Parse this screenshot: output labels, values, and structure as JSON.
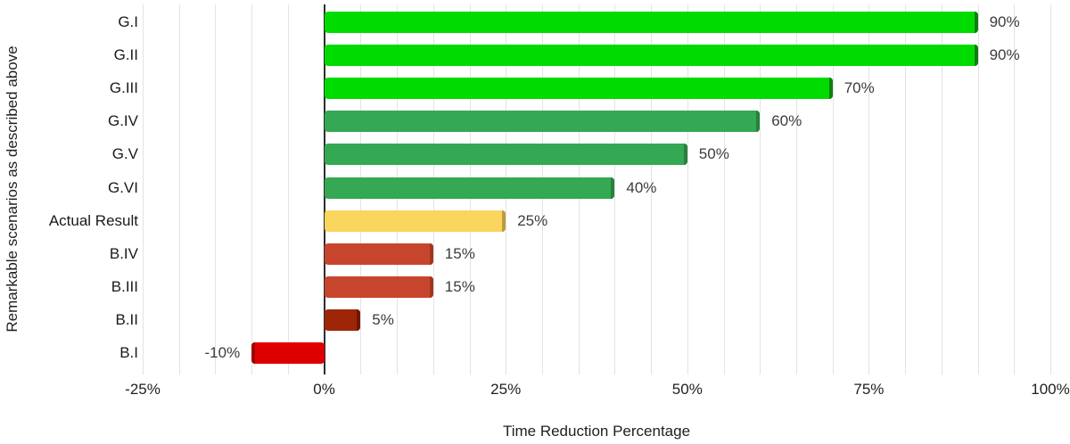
{
  "chart_data": {
    "type": "bar",
    "orientation": "horizontal",
    "title": "",
    "xlabel": "Time Reduction Percentage",
    "ylabel": "Remarkable scenarios as described above",
    "xlim": [
      -25,
      100
    ],
    "x_tick_labels": [
      "-25%",
      "0%",
      "25%",
      "50%",
      "75%",
      "100%"
    ],
    "x_tick_values": [
      -25,
      0,
      25,
      50,
      75,
      100
    ],
    "minor_grid_step_pct": 5,
    "grid": true,
    "legend": false,
    "categories": [
      "G.I",
      "G.II",
      "G.III",
      "G.IV",
      "G.V",
      "G.VI",
      "Actual Result",
      "B.IV",
      "B.III",
      "B.II",
      "B.I"
    ],
    "values": [
      90,
      90,
      70,
      60,
      50,
      40,
      25,
      15,
      15,
      5,
      -10
    ],
    "value_labels": [
      "90%",
      "90%",
      "70%",
      "60%",
      "50%",
      "40%",
      "25%",
      "15%",
      "15%",
      "5%",
      "-10%"
    ],
    "bar_fill_colors": [
      "#00dc00",
      "#00dc00",
      "#00dc00",
      "#34a853",
      "#34a853",
      "#34a853",
      "#fad65e",
      "#c7452c",
      "#c7452c",
      "#9e2508",
      "#de0000"
    ],
    "bar_cap_colors": [
      "#127d12",
      "#127d12",
      "#127d12",
      "#27813e",
      "#27813e",
      "#27813e",
      "#ba9b40",
      "#a1351f",
      "#a1351f",
      "#701604",
      "#9e0202"
    ],
    "colors": {
      "gridline": "#e3e3e3",
      "zero_axis": "#2e2e2e",
      "value_label_text": "#3c3c3c",
      "category_text": "#1a1a1a",
      "axis_text": "#1f1f1f",
      "background": "#ffffff"
    }
  }
}
